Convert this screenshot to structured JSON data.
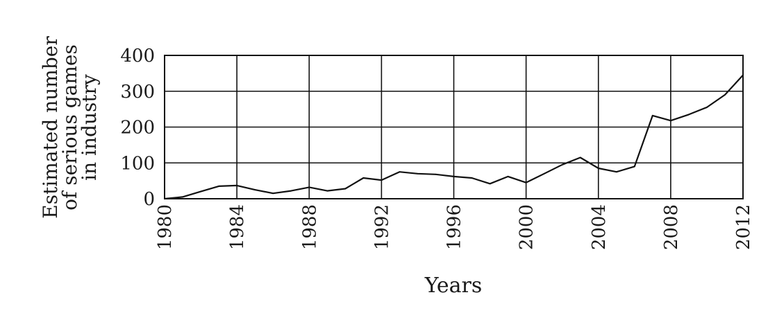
{
  "chart_data": {
    "type": "line",
    "xlabel": "Years",
    "ylabel_lines": [
      "Estimated number",
      "of serious games",
      "in industry"
    ],
    "xlim": [
      1980,
      2012
    ],
    "ylim": [
      0,
      400
    ],
    "xticks": [
      1980,
      1984,
      1988,
      1992,
      1996,
      2000,
      2004,
      2008,
      2012
    ],
    "yticks": [
      0,
      100,
      200,
      300,
      400
    ],
    "grid": true,
    "series": [
      {
        "x": [
          1980,
          1981,
          1982,
          1983,
          1984,
          1985,
          1986,
          1987,
          1988,
          1989,
          1990,
          1991,
          1992,
          1993,
          1994,
          1995,
          1996,
          1997,
          1998,
          1999,
          2000,
          2001,
          2002,
          2003,
          2004,
          2005,
          2006,
          2007,
          2008,
          2009,
          2010,
          2011,
          2012
        ],
        "y": [
          0,
          5,
          20,
          35,
          37,
          25,
          15,
          22,
          32,
          22,
          28,
          58,
          52,
          75,
          70,
          68,
          62,
          58,
          42,
          62,
          45,
          70,
          95,
          115,
          85,
          75,
          90,
          232,
          218,
          235,
          255,
          290,
          345
        ]
      }
    ],
    "colors": {
      "line": "#111111",
      "grid": "#111111",
      "text": "#1a1a1a"
    }
  }
}
